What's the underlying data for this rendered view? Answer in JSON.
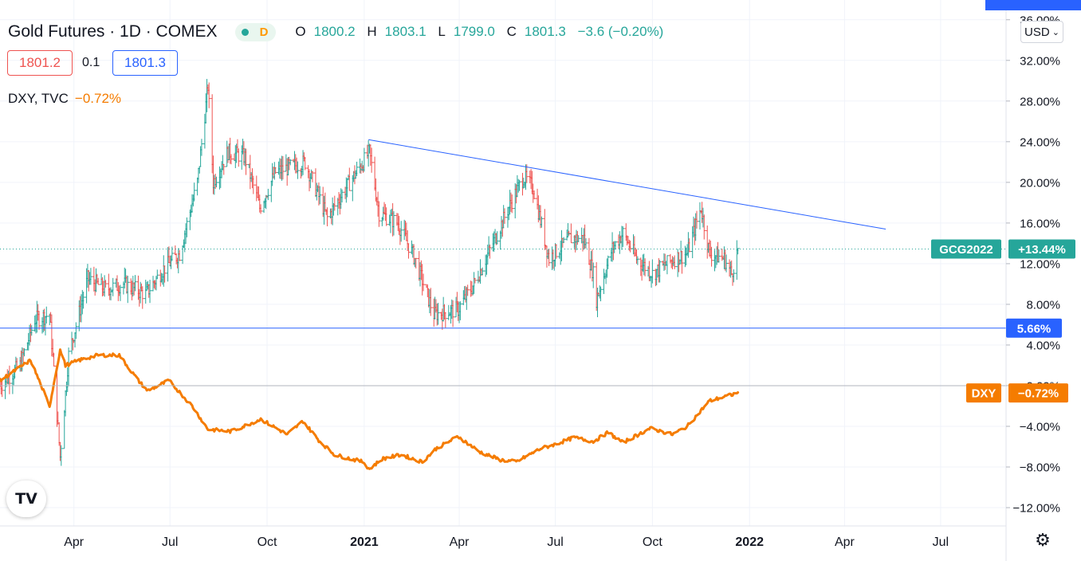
{
  "header": {
    "symbol_title": "Gold Futures · 1D · COMEX",
    "interval_badge": "D",
    "ohlc": {
      "open": "1800.2",
      "high": "1803.1",
      "low": "1799.0",
      "close": "1801.3",
      "change": "−3.6 (−0.20%)"
    },
    "bid": "1801.2",
    "spread": "0.1",
    "ask": "1801.3"
  },
  "compare": {
    "symbol": "DXY, TVC",
    "change": "−0.72%"
  },
  "toolbar": {
    "currency": "USD",
    "logo_text": "TV"
  },
  "colors": {
    "up": "#26a69a",
    "down": "#ef5350",
    "dxy": "#f57c00",
    "trendline": "#2962ff"
  },
  "chart_data": {
    "type": "line",
    "y_axis": {
      "unit": "%",
      "ticks": [
        "36.00%",
        "32.00%",
        "28.00%",
        "24.00%",
        "20.00%",
        "16.00%",
        "12.00%",
        "8.00%",
        "4.00%",
        "0.00%",
        "−4.00%",
        "−8.00%",
        "−12.00%"
      ],
      "tick_values": [
        36,
        32,
        28,
        24,
        20,
        16,
        12,
        8,
        4,
        0,
        -4,
        -8,
        -12
      ],
      "range": [
        -13.8,
        37
      ]
    },
    "x_axis": {
      "ticks": [
        "Apr",
        "Jul",
        "Oct",
        "2021",
        "Apr",
        "Jul",
        "Oct",
        "2022",
        "Apr",
        "Jul"
      ],
      "tick_dates": [
        "2020-04-01",
        "2020-07-01",
        "2020-10-01",
        "2021-01-01",
        "2021-04-01",
        "2021-07-01",
        "2021-10-01",
        "2022-01-01",
        "2022-04-01",
        "2022-07-01"
      ],
      "bold": [
        "2021",
        "2022"
      ],
      "range": [
        "2020-01-22",
        "2022-09-01"
      ]
    },
    "grid": true,
    "series": [
      {
        "name": "GCG2022",
        "style": "ohlc-bars",
        "label": "GCG2022",
        "last_value": 13.44,
        "last_label": "+13.44%",
        "points": [
          [
            "2020-01-22",
            0
          ],
          [
            "2020-02-10",
            2
          ],
          [
            "2020-02-24",
            6.5
          ],
          [
            "2020-03-09",
            7
          ],
          [
            "2020-03-19",
            -7
          ],
          [
            "2020-03-27",
            3
          ],
          [
            "2020-04-14",
            10.5
          ],
          [
            "2020-05-01",
            9.5
          ],
          [
            "2020-05-18",
            10
          ],
          [
            "2020-06-08",
            9
          ],
          [
            "2020-06-25",
            11.5
          ],
          [
            "2020-07-10",
            13
          ],
          [
            "2020-07-27",
            20
          ],
          [
            "2020-08-06",
            29.5
          ],
          [
            "2020-08-11",
            20
          ],
          [
            "2020-08-25",
            23
          ],
          [
            "2020-09-10",
            22.5
          ],
          [
            "2020-09-24",
            17.5
          ],
          [
            "2020-10-09",
            21
          ],
          [
            "2020-10-23",
            21.5
          ],
          [
            "2020-11-06",
            22
          ],
          [
            "2020-11-27",
            16.5
          ],
          [
            "2020-12-15",
            19.5
          ],
          [
            "2020-12-31",
            22
          ],
          [
            "2021-01-06",
            23
          ],
          [
            "2021-01-15",
            17
          ],
          [
            "2021-02-02",
            16
          ],
          [
            "2021-02-18",
            12.5
          ],
          [
            "2021-03-08",
            7
          ],
          [
            "2021-03-31",
            7.5
          ],
          [
            "2021-04-15",
            10
          ],
          [
            "2021-05-03",
            14
          ],
          [
            "2021-05-20",
            18
          ],
          [
            "2021-06-01",
            20.5
          ],
          [
            "2021-06-10",
            19.5
          ],
          [
            "2021-06-25",
            12.5
          ],
          [
            "2021-07-15",
            14.5
          ],
          [
            "2021-07-28",
            14.5
          ],
          [
            "2021-08-06",
            11
          ],
          [
            "2021-08-09",
            8.5
          ],
          [
            "2021-08-24",
            13.5
          ],
          [
            "2021-09-03",
            15
          ],
          [
            "2021-09-16",
            12.5
          ],
          [
            "2021-10-01",
            11
          ],
          [
            "2021-10-22",
            12.5
          ],
          [
            "2021-11-03",
            13
          ],
          [
            "2021-11-16",
            17.5
          ],
          [
            "2021-11-24",
            13
          ],
          [
            "2021-12-08",
            12.5
          ],
          [
            "2021-12-15",
            11
          ],
          [
            "2021-12-21",
            13.4
          ]
        ]
      },
      {
        "name": "DXY",
        "style": "line",
        "label": "DXY",
        "last_value": -0.72,
        "last_label": "−0.72%",
        "points": [
          [
            "2020-01-22",
            0.5
          ],
          [
            "2020-02-20",
            2.5
          ],
          [
            "2020-03-09",
            -2
          ],
          [
            "2020-03-19",
            3.5
          ],
          [
            "2020-03-24",
            2
          ],
          [
            "2020-04-06",
            2.5
          ],
          [
            "2020-04-24",
            3
          ],
          [
            "2020-05-14",
            3
          ],
          [
            "2020-06-01",
            0.5
          ],
          [
            "2020-06-10",
            -0.5
          ],
          [
            "2020-06-30",
            0.5
          ],
          [
            "2020-07-22",
            -2
          ],
          [
            "2020-08-06",
            -4.3
          ],
          [
            "2020-08-28",
            -4.5
          ],
          [
            "2020-09-25",
            -3.3
          ],
          [
            "2020-10-20",
            -4.8
          ],
          [
            "2020-11-04",
            -3.5
          ],
          [
            "2020-11-20",
            -5.5
          ],
          [
            "2020-12-04",
            -6.8
          ],
          [
            "2020-12-31",
            -7.5
          ],
          [
            "2021-01-06",
            -8.2
          ],
          [
            "2021-01-18",
            -7.2
          ],
          [
            "2021-02-05",
            -6.8
          ],
          [
            "2021-02-25",
            -7.5
          ],
          [
            "2021-03-10",
            -6.2
          ],
          [
            "2021-03-31",
            -5
          ],
          [
            "2021-04-20",
            -6.5
          ],
          [
            "2021-05-10",
            -7.3
          ],
          [
            "2021-05-25",
            -7.5
          ],
          [
            "2021-06-17",
            -6.2
          ],
          [
            "2021-06-30",
            -5.8
          ],
          [
            "2021-07-19",
            -5.1
          ],
          [
            "2021-08-06",
            -5.5
          ],
          [
            "2021-08-20",
            -4.6
          ],
          [
            "2021-09-03",
            -5.6
          ],
          [
            "2021-09-29",
            -4.2
          ],
          [
            "2021-10-20",
            -4.8
          ],
          [
            "2021-11-03",
            -4
          ],
          [
            "2021-11-24",
            -1.5
          ],
          [
            "2021-12-08",
            -1.1
          ],
          [
            "2021-12-21",
            -0.72
          ]
        ]
      }
    ],
    "annotations": [
      {
        "type": "trendline",
        "from": [
          "2021-01-05",
          24.2
        ],
        "to": [
          "2022-05-10",
          15.4
        ]
      },
      {
        "type": "horizontal-line",
        "y": 5.66,
        "label": "5.66%"
      },
      {
        "type": "price-line",
        "series": "GCG2022",
        "y": 13.44
      },
      {
        "type": "zero-line",
        "y": 0
      }
    ]
  }
}
